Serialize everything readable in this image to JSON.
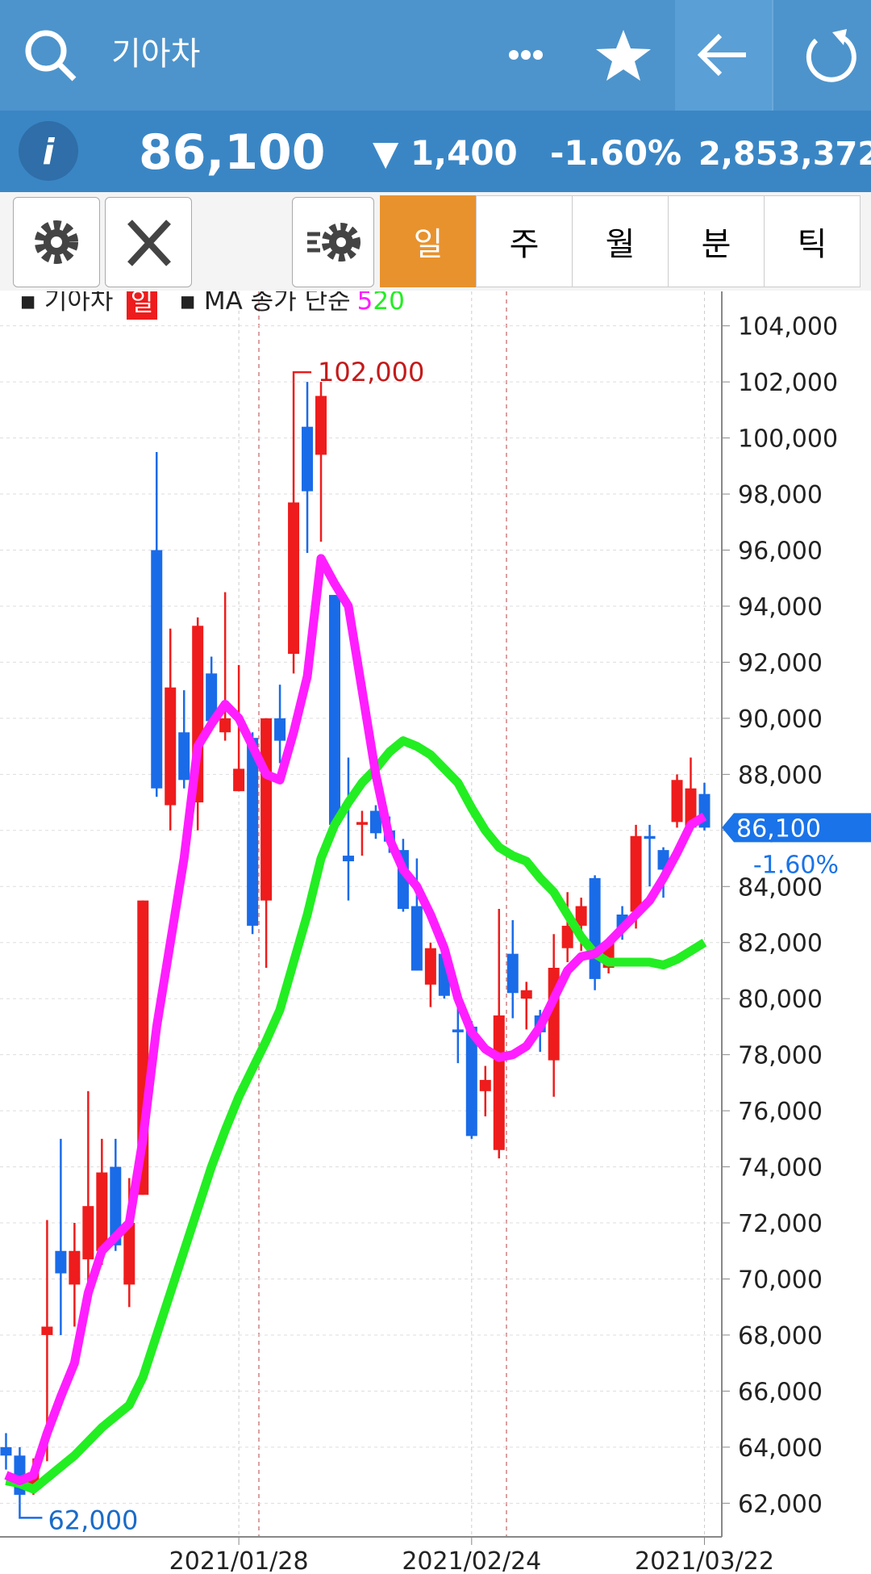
{
  "header": {
    "title": "기아차"
  },
  "quote": {
    "price": "86,100",
    "change": "▼ 1,400",
    "rate": "-1.60%",
    "volume": "2,853,372"
  },
  "tabs": [
    "일",
    "주",
    "월",
    "분",
    "틱"
  ],
  "chart_data": {
    "type": "candlestick",
    "name": "기아차",
    "period": "일",
    "ma_label": "MA 종가 단순",
    "categories": [
      null,
      null,
      null,
      null,
      null,
      null,
      null,
      null,
      null,
      null,
      null,
      null,
      null,
      null,
      null,
      null,
      null,
      "2021/01/28",
      null,
      null,
      null,
      null,
      null,
      null,
      null,
      null,
      null,
      null,
      null,
      null,
      null,
      null,
      null,
      null,
      "2021/02/24",
      null,
      null,
      null,
      null,
      null,
      null,
      null,
      null,
      null,
      null,
      null,
      null,
      null,
      null,
      null,
      null,
      "2021/03/22"
    ],
    "open": [
      64000,
      63700,
      62500,
      68000,
      71000,
      69800,
      70700,
      71000,
      74000,
      69800,
      73000,
      96000,
      86900,
      89500,
      87000,
      91600,
      89500,
      87400,
      89300,
      83500,
      90000,
      92300,
      100400,
      99400,
      94400,
      85100,
      86200,
      86700,
      86000,
      85300,
      83300,
      80500,
      81600,
      78900,
      79000,
      76700,
      74600,
      81600,
      80000,
      79400,
      77800,
      81800,
      82600,
      84300,
      81100,
      83000,
      83100,
      85800,
      85300,
      86300,
      86100,
      87300
    ],
    "high": [
      64500,
      64000,
      63600,
      72100,
      75000,
      72000,
      76700,
      75000,
      75000,
      73600,
      83500,
      99500,
      93200,
      91000,
      93600,
      92200,
      94500,
      91900,
      89500,
      90000,
      91200,
      102000,
      102000,
      102000,
      94400,
      88600,
      86700,
      86900,
      86500,
      85700,
      85000,
      82000,
      81700,
      80100,
      79200,
      77600,
      83200,
      82800,
      80600,
      79600,
      82300,
      83800,
      83600,
      84400,
      82200,
      83300,
      86200,
      86200,
      85400,
      88000,
      88600,
      87700
    ],
    "low": [
      63200,
      62000,
      62300,
      63500,
      68000,
      68300,
      69500,
      70500,
      71000,
      69000,
      73000,
      87200,
      86000,
      87500,
      86000,
      89600,
      89200,
      87400,
      82300,
      81100,
      88400,
      91600,
      95900,
      96300,
      86000,
      83500,
      85100,
      85700,
      85200,
      83100,
      81000,
      79700,
      80000,
      77700,
      75000,
      75800,
      74300,
      79300,
      78900,
      78100,
      76500,
      81300,
      81700,
      80300,
      80900,
      82100,
      82500,
      84000,
      83600,
      86100,
      86000,
      86000
    ],
    "close": [
      63700,
      62300,
      63100,
      68300,
      70200,
      71000,
      72600,
      73800,
      71200,
      72000,
      83500,
      87500,
      91100,
      87800,
      93300,
      89900,
      90000,
      88200,
      82600,
      90000,
      89200,
      97700,
      98100,
      101500,
      86200,
      84900,
      86300,
      85900,
      85600,
      83200,
      81000,
      81800,
      80100,
      78800,
      75100,
      77100,
      79400,
      80200,
      80300,
      78800,
      81100,
      82600,
      83300,
      80700,
      82000,
      82500,
      85800,
      85700,
      84600,
      87800,
      87500,
      86100
    ],
    "up_color": "#ee1c1c",
    "down_color": "#1a6be8",
    "ma": [
      {
        "name": "5",
        "color": "#ff1eff",
        "values": [
          63000,
          62800,
          63000,
          64500,
          65800,
          67000,
          69500,
          71000,
          71500,
          72000,
          75000,
          79000,
          82000,
          85000,
          89000,
          89800,
          90500,
          90000,
          89000,
          88000,
          87800,
          89500,
          91500,
          95700,
          94800,
          94000,
          91000,
          88000,
          85700,
          84600,
          84000,
          83000,
          81800,
          80000,
          78800,
          78200,
          77900,
          78000,
          78300,
          79000,
          80000,
          81000,
          81500,
          81600,
          82000,
          82500,
          83000,
          83500,
          84300,
          85200,
          86200,
          86500
        ]
      },
      {
        "name": "20",
        "color": "#22ee22",
        "values": [
          62800,
          62700,
          62500,
          62900,
          63300,
          63700,
          64200,
          64700,
          65100,
          65500,
          66500,
          68000,
          69500,
          71000,
          72500,
          74000,
          75300,
          76500,
          77500,
          78500,
          79600,
          81300,
          83000,
          85000,
          86200,
          87000,
          87700,
          88200,
          88800,
          89200,
          89000,
          88700,
          88200,
          87700,
          86800,
          86000,
          85400,
          85100,
          84900,
          84300,
          83800,
          83000,
          82200,
          81600,
          81300,
          81300,
          81300,
          81300,
          81200,
          81400,
          81700,
          82000
        ]
      }
    ],
    "ylim": [
      60800,
      105200
    ],
    "yticks": [
      {
        "value": 62000,
        "label": "62,000"
      },
      {
        "value": 64000,
        "label": "64,000"
      },
      {
        "value": 66000,
        "label": "66,000"
      },
      {
        "value": 68000,
        "label": "68,000"
      },
      {
        "value": 70000,
        "label": "70,000"
      },
      {
        "value": 72000,
        "label": "72,000"
      },
      {
        "value": 74000,
        "label": "74,000"
      },
      {
        "value": 76000,
        "label": "76,000"
      },
      {
        "value": 78000,
        "label": "78,000"
      },
      {
        "value": 80000,
        "label": "80,000"
      },
      {
        "value": 82000,
        "label": "82,000"
      },
      {
        "value": 84000,
        "label": "84,000"
      },
      {
        "value": 86000,
        "label": "86,000"
      },
      {
        "value": 88000,
        "label": "88,000"
      },
      {
        "value": 90000,
        "label": "90,000"
      },
      {
        "value": 92000,
        "label": "92,000"
      },
      {
        "value": 94000,
        "label": "94,000"
      },
      {
        "value": 96000,
        "label": "96,000"
      },
      {
        "value": 98000,
        "label": "98,000"
      },
      {
        "value": 100000,
        "label": "100,000"
      },
      {
        "value": 102000,
        "label": "102,000"
      },
      {
        "value": 104000,
        "label": "104,000"
      }
    ],
    "grid": true,
    "max_label": {
      "value": 102000,
      "label": "102,000"
    },
    "min_label": {
      "value": 62000,
      "label": "62,000"
    },
    "last_label": {
      "value": 86100,
      "label": "86,100"
    },
    "last_rate": "-1.60%"
  }
}
